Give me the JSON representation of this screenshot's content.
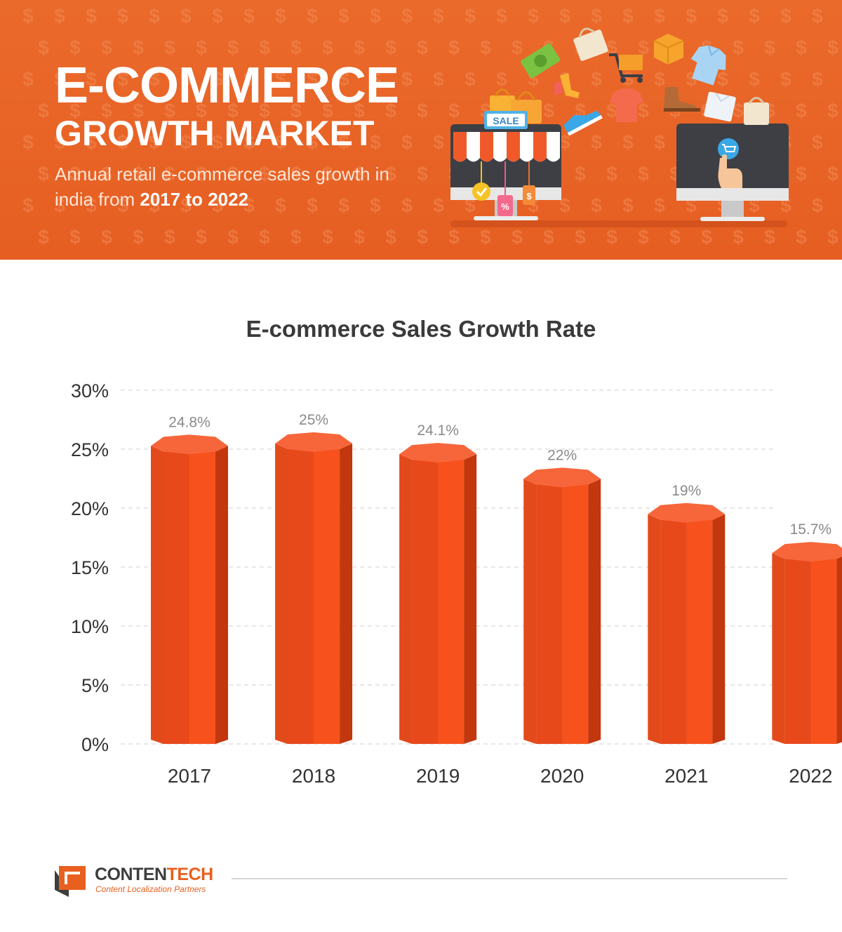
{
  "header": {
    "title_line1": "E-COMMERCE",
    "title_line2": "GROWTH MARKET",
    "subtitle_prefix": "Annual retail e-commerce sales growth in india from ",
    "subtitle_bold": "2017 to 2022",
    "sale_sign": "SALE",
    "percent_tag": "%",
    "dollar_tag": "$"
  },
  "chart_data": {
    "type": "bar",
    "title": "E-commerce Sales Growth Rate",
    "categories": [
      "2017",
      "2018",
      "2019",
      "2020",
      "2021",
      "2022"
    ],
    "values": [
      24.8,
      25,
      24.1,
      22,
      19,
      15.7
    ],
    "data_labels": [
      "24.8%",
      "25%",
      "24.1%",
      "22%",
      "19%",
      "15.7%"
    ],
    "y_ticks": [
      0,
      5,
      10,
      15,
      20,
      25,
      30
    ],
    "y_tick_labels": [
      "0%",
      "5%",
      "10%",
      "15%",
      "20%",
      "25%",
      "30%"
    ],
    "ylim": [
      0,
      30
    ],
    "grid": true,
    "xlabel": "",
    "ylabel": ""
  },
  "colors": {
    "banner": "#e8642a",
    "bar_front": "#f4511e",
    "bar_side": "#c3370e",
    "bar_top": "#f7663a",
    "grid": "#cfcfcf",
    "label": "#8a8a8a"
  },
  "footer": {
    "brand_part1": "CONTEN",
    "brand_part2": "TECH",
    "tagline": "Content Localization Partners"
  }
}
